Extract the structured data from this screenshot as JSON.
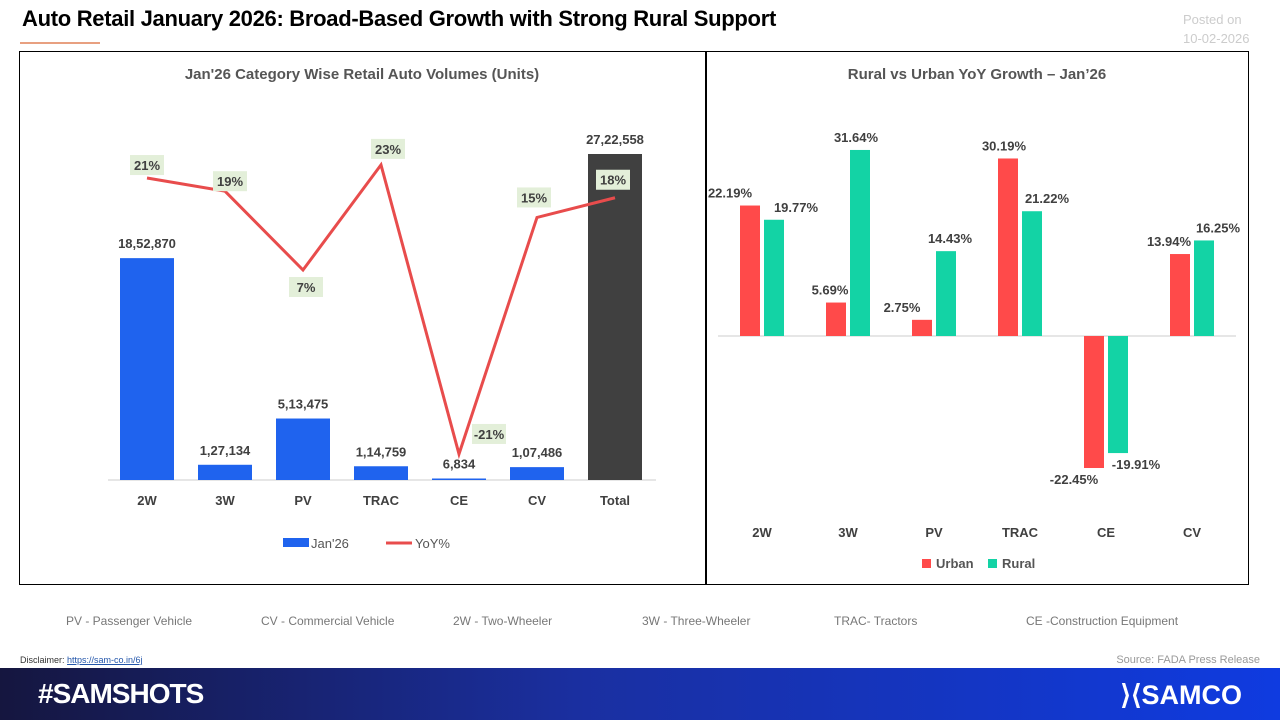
{
  "header": {
    "title": "Auto Retail January 2026: Broad-Based Growth with Strong Rural Support",
    "posted_label": "Posted on",
    "posted_date": "10-02-2026"
  },
  "chart_data": [
    {
      "type": "bar+line",
      "title": "Jan'26 Category Wise Retail Auto Volumes (Units)",
      "categories": [
        "2W",
        "3W",
        "PV",
        "TRAC",
        "CE",
        "CV",
        "Total"
      ],
      "series": [
        {
          "name": "Jan'26",
          "type": "bar",
          "values": [
            1852870,
            127134,
            513475,
            114759,
            6834,
            107486,
            2722558
          ],
          "labels": [
            "18,52,870",
            "1,27,134",
            "5,13,475",
            "1,14,759",
            "6,834",
            "1,07,486",
            "27,22,558"
          ],
          "color": "#1f63ee",
          "total_color": "#404040"
        },
        {
          "name": "YoY%",
          "type": "line",
          "values": [
            21,
            19,
            7,
            23,
            -21,
            15,
            18
          ],
          "labels": [
            "21%",
            "19%",
            "7%",
            "23%",
            "-21%",
            "15%",
            "18%"
          ],
          "color": "#e84c4c"
        }
      ],
      "legend": "bottom",
      "grid": false
    },
    {
      "type": "bar",
      "title": "Rural vs Urban YoY Growth – Jan’26",
      "categories": [
        "2W",
        "3W",
        "PV",
        "TRAC",
        "CE",
        "CV"
      ],
      "series": [
        {
          "name": "Urban",
          "values": [
            22.19,
            5.69,
            2.75,
            30.19,
            -22.45,
            13.94
          ],
          "color": "#ff4a4a"
        },
        {
          "name": "Rural",
          "values": [
            19.77,
            31.64,
            14.43,
            21.22,
            -19.91,
            16.25
          ],
          "color": "#13d3a5"
        }
      ],
      "legend": "bottom",
      "grid": false
    }
  ],
  "abbreviations": [
    "PV - Passenger Vehicle",
    "CV - Commercial Vehicle",
    "2W - Two-Wheeler",
    "3W - Three-Wheeler",
    "TRAC- Tractors",
    "CE -Construction Equipment"
  ],
  "footer": {
    "disclaimer_label": "Disclaimer:",
    "disclaimer_link": "https://sam-co.in/6j",
    "source": "Source: FADA Press Release",
    "hashtag": "#SAMSHOTS",
    "logo": "SAMCO"
  }
}
